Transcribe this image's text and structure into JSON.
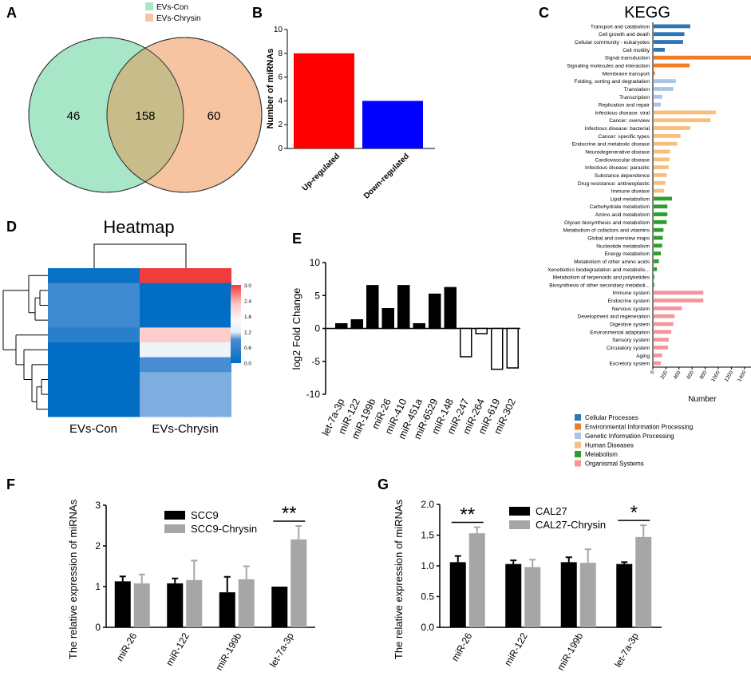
{
  "panels": {
    "A": "A",
    "B": "B",
    "C": "C",
    "D": "D",
    "E": "E",
    "F": "F",
    "G": "G"
  },
  "colors": {
    "venn_left": "#a8e6c8",
    "venn_right": "#f7c4a2",
    "venn_overlap": "#c8bd8a",
    "bar_up": "#ff0000",
    "bar_down": "#0000ff",
    "kegg": {
      "Cellular Processes": "#2e75b6",
      "Environmental Information Processing": "#f47b20",
      "Genetic Information Processing": "#a9c4e6",
      "Human Diseases": "#f9be7d",
      "Metabolism": "#2ca02c",
      "Organismal Systems": "#f4959a"
    },
    "black_bar": "#000000",
    "grey_bar": "#a6a6a6"
  },
  "venn": {
    "legend": [
      "EVs-Con",
      "EVs-Chrysin"
    ],
    "left_only": "46",
    "overlap": "158",
    "right_only": "60"
  },
  "chart_data": [
    {
      "id": "B",
      "type": "bar",
      "categories": [
        "Up-regulated",
        "Down-regulated"
      ],
      "values": [
        8,
        4
      ],
      "ylabel": "Number of miRNAs",
      "xlabel": "",
      "ylim": [
        0,
        10
      ],
      "yticks": [
        0,
        2,
        4,
        6,
        8,
        10
      ]
    },
    {
      "id": "C",
      "type": "bar",
      "orientation": "horizontal",
      "title": "KEGG",
      "xlabel": "Number",
      "xlim": [
        0,
        1500
      ],
      "xticks": [
        0,
        200,
        400,
        600,
        800,
        1000,
        1200,
        1400
      ],
      "categories": [
        "Transport and catabolism",
        "Cell growth and death",
        "Cellular community - eukaryotes",
        "Cell motility",
        "Signal transduction",
        "Signaling molecules and interaction",
        "Membrane transport",
        "Folding, sorting and degradation",
        "Translation",
        "Transcription",
        "Replication and repair",
        "Infectious disease: viral",
        "Cancer: overview",
        "Infectious disease: bacterial",
        "Cancer: specific types",
        "Endocrine and metabolic disease",
        "Neurodegenerative disease",
        "Cardiovascular disease",
        "Infectious disease: parasitic",
        "Substance dependence",
        "Drug resistance: antineoplastic",
        "Immune disease",
        "Lipid metabolism",
        "Carbohydrate metabolism",
        "Amino acid metabolism",
        "Glycan biosynthesis and metabolism",
        "Metabolism of cofactors and vitamins",
        "Global and overview maps",
        "Nucleotide metabolism",
        "Energy metabolism",
        "Metabolism of other amino acids",
        "Xenobiotics biodegradation and metabolis...",
        "Metabolism of terpenoids and polyketides",
        "Biosynthesis of other secondary metaboli...",
        "Immune system",
        "Endocrine system",
        "Nervous system",
        "Development and regeneration",
        "Digestive system",
        "Environmental adaptation",
        "Sensory system",
        "Circulatory system",
        "Aging",
        "Excretory system"
      ],
      "values": [
        560,
        470,
        450,
        170,
        1490,
        550,
        20,
        340,
        300,
        130,
        110,
        950,
        870,
        560,
        410,
        360,
        250,
        240,
        230,
        200,
        180,
        160,
        280,
        210,
        210,
        200,
        150,
        140,
        130,
        110,
        80,
        50,
        10,
        5,
        760,
        760,
        430,
        320,
        300,
        270,
        230,
        220,
        130,
        110
      ],
      "groups": [
        "Cellular Processes",
        "Cellular Processes",
        "Cellular Processes",
        "Cellular Processes",
        "Environmental Information Processing",
        "Environmental Information Processing",
        "Environmental Information Processing",
        "Genetic Information Processing",
        "Genetic Information Processing",
        "Genetic Information Processing",
        "Genetic Information Processing",
        "Human Diseases",
        "Human Diseases",
        "Human Diseases",
        "Human Diseases",
        "Human Diseases",
        "Human Diseases",
        "Human Diseases",
        "Human Diseases",
        "Human Diseases",
        "Human Diseases",
        "Human Diseases",
        "Metabolism",
        "Metabolism",
        "Metabolism",
        "Metabolism",
        "Metabolism",
        "Metabolism",
        "Metabolism",
        "Metabolism",
        "Metabolism",
        "Metabolism",
        "Metabolism",
        "Metabolism",
        "Organismal Systems",
        "Organismal Systems",
        "Organismal Systems",
        "Organismal Systems",
        "Organismal Systems",
        "Organismal Systems",
        "Organismal Systems",
        "Organismal Systems",
        "Organismal Systems",
        "Organismal Systems"
      ],
      "legend": [
        "Cellular Processes",
        "Environmental Information Processing",
        "Genetic Information Processing",
        "Human Diseases",
        "Metabolism",
        "Organismal Systems"
      ]
    },
    {
      "id": "D",
      "type": "heatmap",
      "title": "Heatmap",
      "columns": [
        "EVs-Con",
        "EVs-Chrysin"
      ],
      "values": [
        [
          0.1,
          3.0
        ],
        [
          0.8,
          0.0
        ],
        [
          0.8,
          0.0
        ],
        [
          0.8,
          0.0
        ],
        [
          0.5,
          2.2
        ],
        [
          0.0,
          1.4
        ],
        [
          0.0,
          0.9
        ],
        [
          0.0,
          1.0
        ],
        [
          0.0,
          1.0
        ],
        [
          0.0,
          1.0
        ]
      ],
      "colorbar_ticks": [
        "3.0",
        "2.4",
        "1.8",
        "1.2",
        "0.6",
        "0.0"
      ],
      "crange": [
        0,
        3
      ]
    },
    {
      "id": "E",
      "type": "bar",
      "categories": [
        "let-7a-3p",
        "miR-122",
        "miR-199b",
        "miR-26",
        "miR-410",
        "miR-451a",
        "miR-6529",
        "miR-148",
        "miR-247",
        "miR-264",
        "miR-619",
        "miR-302"
      ],
      "values": [
        0.7,
        1.3,
        6.5,
        3.0,
        6.5,
        0.7,
        5.2,
        6.2,
        -4.3,
        -0.8,
        -6.2,
        -6.0
      ],
      "ylabel": "log2 Fold Change",
      "ylim": [
        -10,
        10
      ],
      "yticks": [
        -10,
        -5,
        0,
        5,
        10
      ]
    },
    {
      "id": "F",
      "type": "bar",
      "categories": [
        "miR-26",
        "miR-122",
        "miR-199b",
        "let-7a-3p"
      ],
      "series": [
        {
          "name": "SCC9",
          "values": [
            1.13,
            1.08,
            0.86,
            1.0
          ],
          "errors": [
            0.12,
            0.12,
            0.38,
            0.0
          ]
        },
        {
          "name": "SCC9-Chrysin",
          "values": [
            1.08,
            1.16,
            1.18,
            2.16
          ],
          "errors": [
            0.22,
            0.48,
            0.32,
            0.33
          ]
        }
      ],
      "ylabel": "The relative expression of miRNAs",
      "ylim": [
        0,
        3
      ],
      "yticks": [
        0,
        1,
        2,
        3
      ],
      "significance": [
        {
          "category": "let-7a-3p",
          "label": "**"
        }
      ]
    },
    {
      "id": "G",
      "type": "bar",
      "categories": [
        "miR-26",
        "miR-122",
        "miR-199b",
        "let-7a-3p"
      ],
      "series": [
        {
          "name": "CAL27",
          "values": [
            1.06,
            1.03,
            1.06,
            1.03
          ],
          "errors": [
            0.1,
            0.06,
            0.08,
            0.03
          ]
        },
        {
          "name": "CAL27-Chrysin",
          "values": [
            1.53,
            0.98,
            1.05,
            1.47
          ],
          "errors": [
            0.1,
            0.12,
            0.22,
            0.19
          ]
        }
      ],
      "ylabel": "The relative expression of miRNAs",
      "ylim": [
        0,
        2
      ],
      "yticks": [
        0.0,
        0.5,
        1.0,
        1.5,
        2.0
      ],
      "significance": [
        {
          "category": "miR-26",
          "label": "**"
        },
        {
          "category": "let-7a-3p",
          "label": "*"
        }
      ]
    }
  ]
}
